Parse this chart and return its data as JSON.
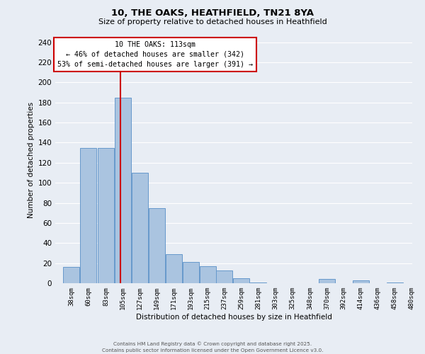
{
  "title": "10, THE OAKS, HEATHFIELD, TN21 8YA",
  "subtitle": "Size of property relative to detached houses in Heathfield",
  "xlabel": "Distribution of detached houses by size in Heathfield",
  "ylabel": "Number of detached properties",
  "bar_color": "#aac4e0",
  "bar_edge_color": "#6699cc",
  "background_color": "#e8edf4",
  "grid_color": "#ffffff",
  "bins_left": [
    38,
    60,
    83,
    105,
    127,
    149,
    171,
    193,
    215,
    237,
    259,
    281,
    303,
    325,
    348,
    370,
    392,
    414,
    436,
    458
  ],
  "bin_width": 22,
  "values": [
    16,
    135,
    135,
    185,
    110,
    75,
    29,
    21,
    17,
    13,
    5,
    1,
    0,
    0,
    0,
    4,
    0,
    3,
    0,
    1
  ],
  "tick_labels": [
    "38sqm",
    "60sqm",
    "83sqm",
    "105sqm",
    "127sqm",
    "149sqm",
    "171sqm",
    "193sqm",
    "215sqm",
    "237sqm",
    "259sqm",
    "281sqm",
    "303sqm",
    "325sqm",
    "348sqm",
    "370sqm",
    "392sqm",
    "414sqm",
    "436sqm",
    "458sqm",
    "480sqm"
  ],
  "vline_x": 113,
  "vline_color": "#cc0000",
  "annotation_text_line1": "10 THE OAKS: 113sqm",
  "annotation_text_line2": "← 46% of detached houses are smaller (342)",
  "annotation_text_line3": "53% of semi-detached houses are larger (391) →",
  "ylim": [
    0,
    245
  ],
  "yticks": [
    0,
    20,
    40,
    60,
    80,
    100,
    120,
    140,
    160,
    180,
    200,
    220,
    240
  ],
  "footer_line1": "Contains HM Land Registry data © Crown copyright and database right 2025.",
  "footer_line2": "Contains public sector information licensed under the Open Government Licence v3.0."
}
